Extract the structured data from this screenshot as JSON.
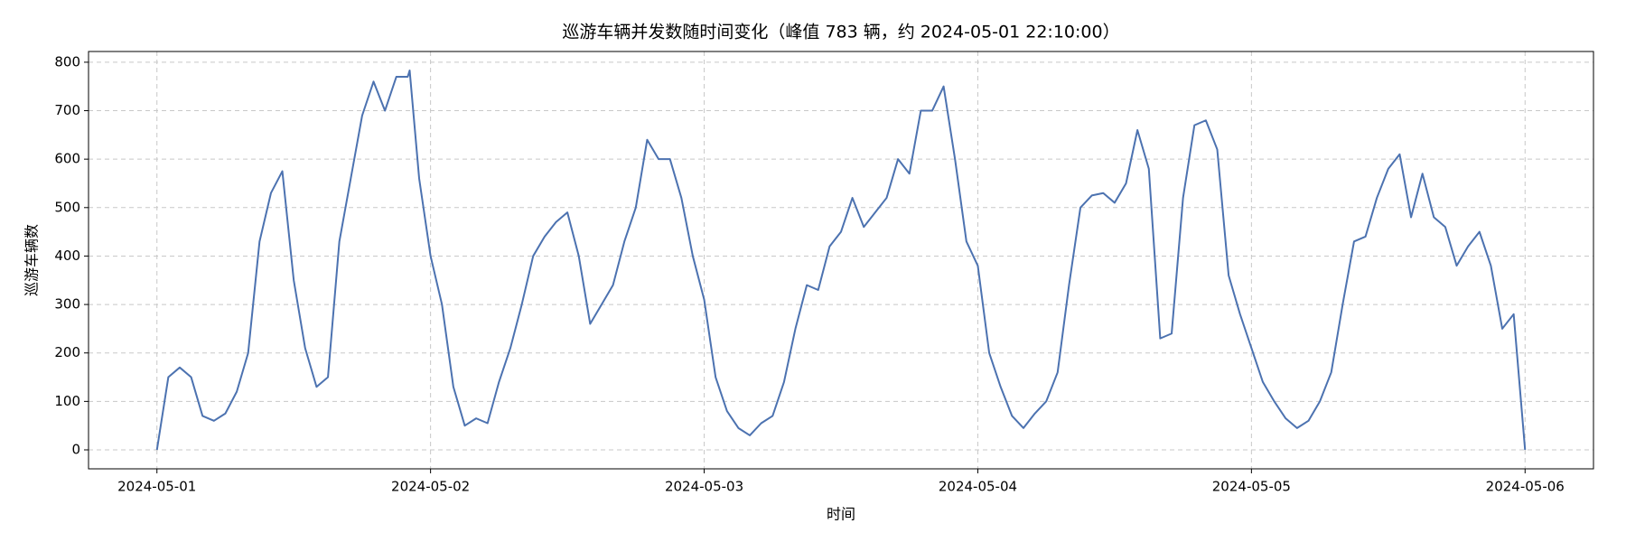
{
  "chart_data": {
    "type": "line",
    "title": "巡游车辆并发数随时间变化（峰值 783 辆，约 2024-05-01 22:10:00）",
    "xlabel": "时间",
    "ylabel": "巡游车辆数",
    "color": "#4c72b0",
    "grid": true,
    "xlim": [
      "2024-04-30 18:00",
      "2024-05-06 06:00"
    ],
    "ylim": [
      -39.15,
      822.15
    ],
    "xticks": [
      "2024-05-01",
      "2024-05-02",
      "2024-05-03",
      "2024-05-04",
      "2024-05-05",
      "2024-05-06"
    ],
    "yticks": [
      0,
      100,
      200,
      300,
      400,
      500,
      600,
      700,
      800
    ],
    "x": [
      "2024-05-01 00:00",
      "2024-05-01 01:00",
      "2024-05-01 02:00",
      "2024-05-01 03:00",
      "2024-05-01 04:00",
      "2024-05-01 05:00",
      "2024-05-01 06:00",
      "2024-05-01 07:00",
      "2024-05-01 08:00",
      "2024-05-01 09:00",
      "2024-05-01 10:00",
      "2024-05-01 11:00",
      "2024-05-01 12:00",
      "2024-05-01 13:00",
      "2024-05-01 14:00",
      "2024-05-01 15:00",
      "2024-05-01 16:00",
      "2024-05-01 17:00",
      "2024-05-01 18:00",
      "2024-05-01 19:00",
      "2024-05-01 20:00",
      "2024-05-01 21:00",
      "2024-05-01 22:00",
      "2024-05-01 22:10",
      "2024-05-01 23:00",
      "2024-05-02 00:00",
      "2024-05-02 01:00",
      "2024-05-02 02:00",
      "2024-05-02 03:00",
      "2024-05-02 04:00",
      "2024-05-02 05:00",
      "2024-05-02 06:00",
      "2024-05-02 07:00",
      "2024-05-02 08:00",
      "2024-05-02 09:00",
      "2024-05-02 10:00",
      "2024-05-02 11:00",
      "2024-05-02 12:00",
      "2024-05-02 13:00",
      "2024-05-02 14:00",
      "2024-05-02 15:00",
      "2024-05-02 16:00",
      "2024-05-02 17:00",
      "2024-05-02 18:00",
      "2024-05-02 19:00",
      "2024-05-02 20:00",
      "2024-05-02 21:00",
      "2024-05-02 22:00",
      "2024-05-02 23:00",
      "2024-05-03 00:00",
      "2024-05-03 01:00",
      "2024-05-03 02:00",
      "2024-05-03 03:00",
      "2024-05-03 04:00",
      "2024-05-03 05:00",
      "2024-05-03 06:00",
      "2024-05-03 07:00",
      "2024-05-03 08:00",
      "2024-05-03 09:00",
      "2024-05-03 10:00",
      "2024-05-03 11:00",
      "2024-05-03 12:00",
      "2024-05-03 13:00",
      "2024-05-03 14:00",
      "2024-05-03 15:00",
      "2024-05-03 16:00",
      "2024-05-03 17:00",
      "2024-05-03 18:00",
      "2024-05-03 19:00",
      "2024-05-03 20:00",
      "2024-05-03 21:00",
      "2024-05-03 22:00",
      "2024-05-03 23:00",
      "2024-05-04 00:00",
      "2024-05-04 01:00",
      "2024-05-04 02:00",
      "2024-05-04 03:00",
      "2024-05-04 04:00",
      "2024-05-04 05:00",
      "2024-05-04 06:00",
      "2024-05-04 07:00",
      "2024-05-04 08:00",
      "2024-05-04 09:00",
      "2024-05-04 10:00",
      "2024-05-04 11:00",
      "2024-05-04 12:00",
      "2024-05-04 13:00",
      "2024-05-04 14:00",
      "2024-05-04 15:00",
      "2024-05-04 16:00",
      "2024-05-04 17:00",
      "2024-05-04 18:00",
      "2024-05-04 19:00",
      "2024-05-04 20:00",
      "2024-05-04 21:00",
      "2024-05-04 22:00",
      "2024-05-04 23:00",
      "2024-05-05 00:00",
      "2024-05-05 01:00",
      "2024-05-05 02:00",
      "2024-05-05 03:00",
      "2024-05-05 04:00",
      "2024-05-05 05:00",
      "2024-05-05 06:00",
      "2024-05-05 07:00",
      "2024-05-05 08:00",
      "2024-05-05 09:00",
      "2024-05-05 10:00",
      "2024-05-05 11:00",
      "2024-05-05 12:00",
      "2024-05-05 13:00",
      "2024-05-05 14:00",
      "2024-05-05 15:00",
      "2024-05-05 16:00",
      "2024-05-05 17:00",
      "2024-05-05 18:00",
      "2024-05-05 19:00",
      "2024-05-05 20:00",
      "2024-05-05 21:00",
      "2024-05-05 22:00",
      "2024-05-05 23:00",
      "2024-05-06 00:00"
    ],
    "values": [
      0,
      150,
      170,
      150,
      70,
      60,
      75,
      120,
      200,
      430,
      530,
      575,
      350,
      210,
      130,
      150,
      430,
      560,
      690,
      760,
      700,
      770,
      770,
      783,
      560,
      400,
      300,
      130,
      50,
      65,
      55,
      140,
      210,
      300,
      400,
      440,
      470,
      490,
      400,
      260,
      300,
      340,
      430,
      500,
      640,
      600,
      600,
      520,
      400,
      310,
      150,
      80,
      45,
      30,
      55,
      70,
      140,
      250,
      340,
      330,
      420,
      450,
      520,
      460,
      490,
      520,
      600,
      570,
      700,
      700,
      750,
      600,
      430,
      380,
      200,
      130,
      70,
      45,
      75,
      100,
      160,
      340,
      500,
      525,
      530,
      510,
      550,
      660,
      580,
      230,
      240,
      520,
      670,
      680,
      620,
      360,
      280,
      210,
      140,
      100,
      65,
      45,
      60,
      100,
      160,
      300,
      430,
      440,
      520,
      580,
      610,
      480,
      570,
      480,
      460,
      380,
      420,
      450,
      380,
      250,
      280,
      0
    ]
  }
}
